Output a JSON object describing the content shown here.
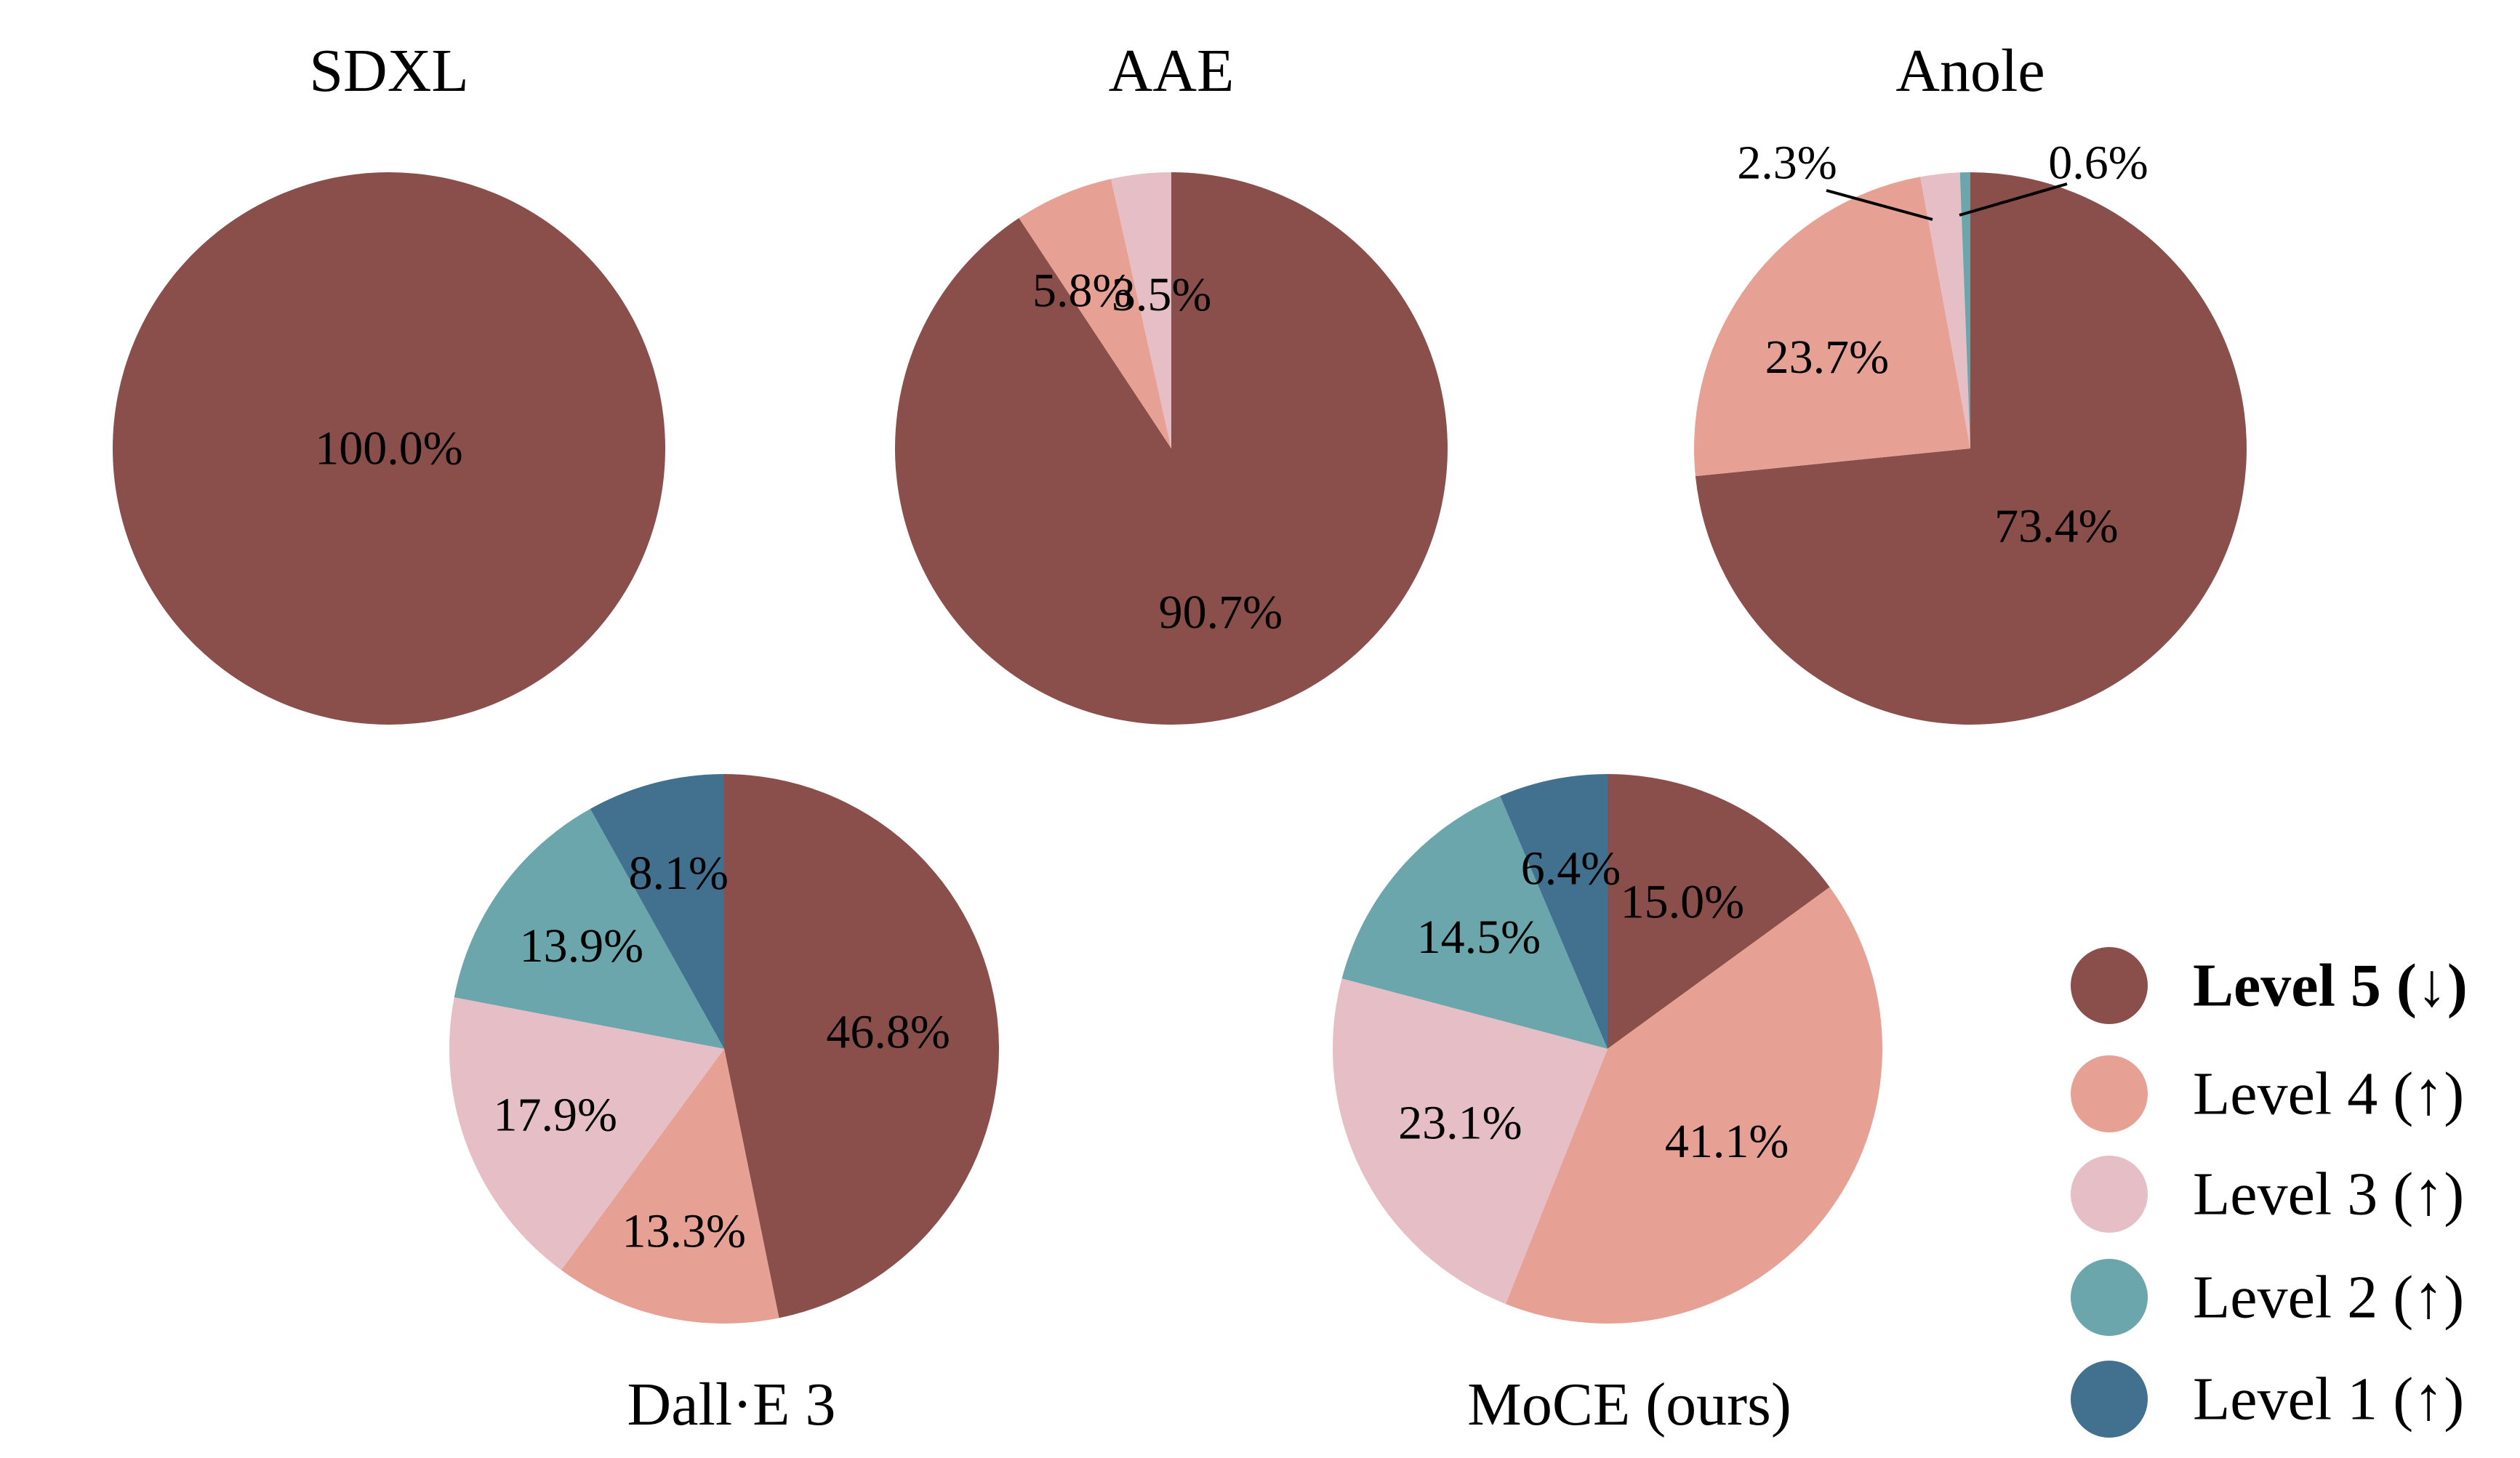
{
  "colors": {
    "Level 5": "#8b4f4b",
    "Level 4": "#e6a194",
    "Level 3": "#e6bec5",
    "Level 2": "#6aa6ab",
    "Level 1": "#41718e"
  },
  "legend": [
    {
      "key": "Level 5",
      "label": "Level 5 (↓)",
      "highlight": true
    },
    {
      "key": "Level 4",
      "label": "Level 4 (↑)",
      "highlight": false
    },
    {
      "key": "Level 3",
      "label": "Level 3 (↑)",
      "highlight": false
    },
    {
      "key": "Level 2",
      "label": "Level 2 (↑)",
      "highlight": false
    },
    {
      "key": "Level 1",
      "label": "Level 1 (↑)",
      "highlight": false
    }
  ],
  "chart_data": [
    {
      "type": "pie",
      "title": "SDXL",
      "categories": [
        "Level 5",
        "Level 4",
        "Level 3",
        "Level 2",
        "Level 1"
      ],
      "values": [
        100.0,
        0,
        0,
        0,
        0
      ],
      "labels": [
        "100.0%",
        "",
        "",
        "",
        ""
      ]
    },
    {
      "type": "pie",
      "title": "AAE",
      "categories": [
        "Level 5",
        "Level 4",
        "Level 3",
        "Level 2",
        "Level 1"
      ],
      "values": [
        90.7,
        5.8,
        3.5,
        0,
        0
      ],
      "labels": [
        "90.7%",
        "5.8%",
        "3.5%",
        "",
        ""
      ]
    },
    {
      "type": "pie",
      "title": "Anole",
      "categories": [
        "Level 5",
        "Level 4",
        "Level 3",
        "Level 2",
        "Level 1"
      ],
      "values": [
        73.4,
        23.7,
        2.3,
        0.6,
        0
      ],
      "labels": [
        "73.4%",
        "23.7%",
        "2.3%",
        "0.6%",
        ""
      ]
    },
    {
      "type": "pie",
      "title": "Dall·E 3",
      "categories": [
        "Level 5",
        "Level 4",
        "Level 3",
        "Level 2",
        "Level 1"
      ],
      "values": [
        46.8,
        13.3,
        17.9,
        13.9,
        8.1
      ],
      "labels": [
        "46.8%",
        "13.3%",
        "17.9%",
        "13.9%",
        "8.1%"
      ]
    },
    {
      "type": "pie",
      "title": "MoCE (ours)",
      "categories": [
        "Level 5",
        "Level 4",
        "Level 3",
        "Level 2",
        "Level 1"
      ],
      "values": [
        15.0,
        41.1,
        23.1,
        14.5,
        6.4
      ],
      "labels": [
        "15.0%",
        "41.1%",
        "23.1%",
        "14.5%",
        "6.4%"
      ]
    }
  ]
}
